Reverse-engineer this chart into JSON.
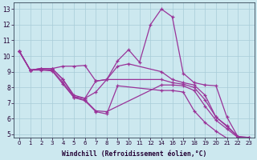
{
  "bg_color": "#cce8ef",
  "line_color": "#993399",
  "xlabel": "Windchill (Refroidissement éolien,°C)",
  "xlim": [
    -0.5,
    23.5
  ],
  "ylim": [
    4.8,
    13.4
  ],
  "xticks": [
    0,
    1,
    2,
    3,
    4,
    5,
    6,
    7,
    8,
    9,
    10,
    11,
    12,
    14,
    16,
    17,
    18,
    19,
    20,
    21,
    22,
    23
  ],
  "yticks": [
    5,
    6,
    7,
    8,
    9,
    10,
    11,
    12,
    13
  ],
  "lines": [
    {
      "x": [
        0,
        1,
        2,
        3,
        4,
        5,
        6,
        7,
        8,
        9,
        10,
        11,
        12,
        14,
        16,
        17,
        18,
        19,
        20,
        21,
        22,
        23
      ],
      "y": [
        10.3,
        9.1,
        9.2,
        9.2,
        9.35,
        9.35,
        9.4,
        8.4,
        8.5,
        9.7,
        10.4,
        9.6,
        12.0,
        13.0,
        12.5,
        8.9,
        8.3,
        8.15,
        8.1,
        6.1,
        4.85,
        4.8
      ]
    },
    {
      "x": [
        0,
        1,
        2,
        3,
        4,
        5,
        6,
        7,
        8,
        9,
        10,
        14,
        16,
        17,
        18,
        19,
        20,
        21,
        22,
        23
      ],
      "y": [
        10.3,
        9.1,
        9.2,
        9.2,
        8.5,
        7.4,
        7.3,
        7.7,
        8.5,
        9.35,
        9.5,
        9.0,
        8.5,
        8.3,
        8.15,
        7.5,
        6.1,
        5.55,
        4.85,
        4.8
      ]
    },
    {
      "x": [
        0,
        1,
        2,
        3,
        4,
        5,
        6,
        7,
        8,
        14,
        16,
        17,
        18,
        19,
        20,
        21,
        22,
        23
      ],
      "y": [
        10.3,
        9.1,
        9.2,
        9.2,
        8.5,
        7.5,
        7.3,
        8.4,
        8.5,
        8.5,
        8.3,
        8.2,
        8.0,
        7.2,
        6.1,
        5.5,
        4.85,
        4.75
      ]
    },
    {
      "x": [
        0,
        1,
        2,
        3,
        4,
        5,
        6,
        7,
        8,
        14,
        16,
        17,
        18,
        19,
        20,
        21,
        22,
        23
      ],
      "y": [
        10.3,
        9.1,
        9.15,
        9.1,
        8.3,
        7.35,
        7.2,
        6.5,
        6.45,
        8.15,
        8.15,
        8.1,
        7.8,
        6.8,
        5.9,
        5.35,
        4.8,
        4.7
      ]
    },
    {
      "x": [
        0,
        1,
        2,
        3,
        4,
        5,
        6,
        7,
        8,
        9,
        14,
        16,
        17,
        18,
        19,
        20,
        21,
        22,
        23
      ],
      "y": [
        10.3,
        9.1,
        9.1,
        9.05,
        8.2,
        7.35,
        7.15,
        6.45,
        6.3,
        8.1,
        7.8,
        7.8,
        7.7,
        6.5,
        5.75,
        5.2,
        4.75,
        4.75,
        4.65
      ]
    }
  ]
}
